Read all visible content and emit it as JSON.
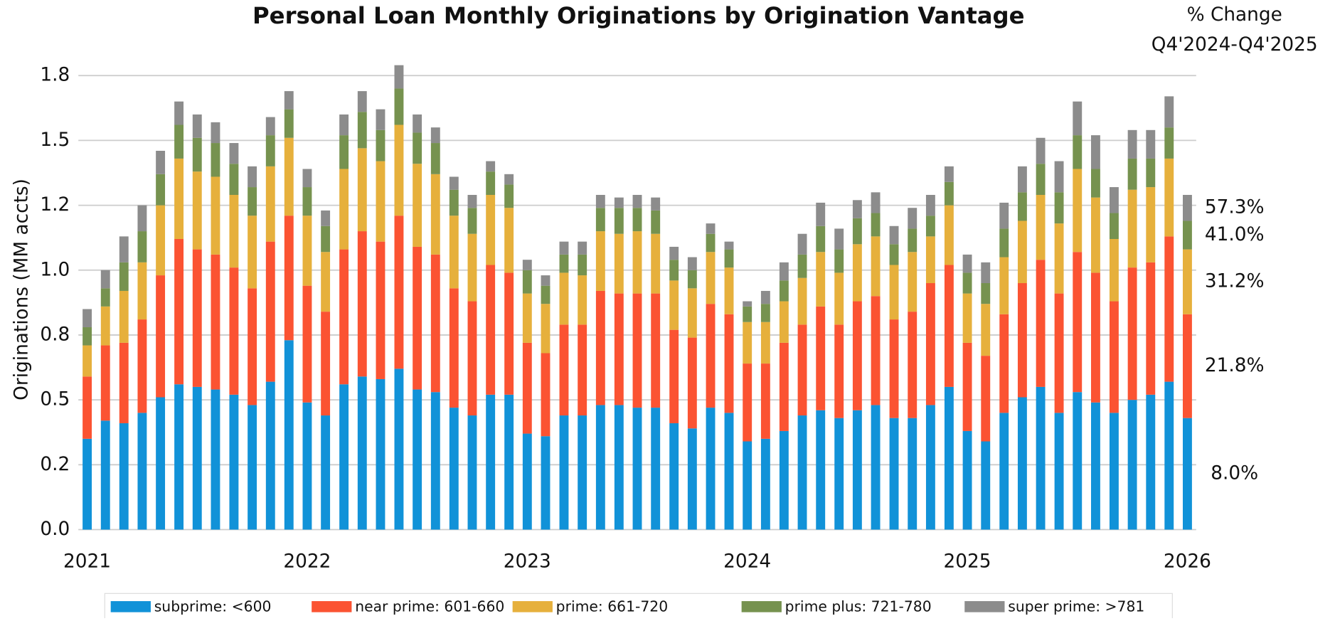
{
  "chart_data": {
    "type": "stacked_bar",
    "title": "Personal Loan Monthly Originations by Origination Vantage",
    "y_label": "Originations (MM accts)",
    "change_title": [
      "% Change",
      "Q4'2024-Q4'2025"
    ],
    "change_labels": [
      "8.0%",
      "21.8%",
      "31.2%",
      "41.0%",
      "57.3%"
    ],
    "x": [
      2021,
      2021.083,
      2021.167,
      2021.25,
      2021.333,
      2021.417,
      2021.5,
      2021.583,
      2021.667,
      2021.75,
      2021.833,
      2021.917,
      2022,
      2022.083,
      2022.167,
      2022.25,
      2022.333,
      2022.417,
      2022.5,
      2022.583,
      2022.667,
      2022.75,
      2022.833,
      2022.917,
      2023,
      2023.083,
      2023.167,
      2023.25,
      2023.333,
      2023.417,
      2023.5,
      2023.583,
      2023.667,
      2023.75,
      2023.833,
      2023.917,
      2024,
      2024.083,
      2024.167,
      2024.25,
      2024.333,
      2024.417,
      2024.5,
      2024.583,
      2024.667,
      2024.75,
      2024.833,
      2024.917,
      2025,
      2025.083,
      2025.167,
      2025.25,
      2025.333,
      2025.417,
      2025.5,
      2025.583,
      2025.667,
      2025.75,
      2025.833,
      2025.917,
      2026
    ],
    "xlim": [
      2020.96,
      2026.04
    ],
    "xticks": [
      2021,
      2022,
      2023,
      2024,
      2025,
      2026
    ],
    "ylim": [
      0,
      1.8
    ],
    "yticks": [
      {
        "value": 0,
        "label": "0.0"
      },
      {
        "value": 0.25,
        "label": "0.2"
      },
      0.5,
      {
        "value": 0.75,
        "label": "0.8"
      },
      {
        "value": 1,
        "label": "1.0"
      },
      {
        "value": 1.25,
        "label": "1.2"
      },
      1.5,
      {
        "value": 1.75,
        "label": "1.8"
      }
    ],
    "grid": true,
    "legend": "bottom",
    "series": [
      {
        "name": "subprime: <600",
        "color": "#1192d8",
        "values": [
          0.35,
          0.42,
          0.41,
          0.45,
          0.51,
          0.56,
          0.55,
          0.54,
          0.52,
          0.48,
          0.57,
          0.73,
          0.49,
          0.44,
          0.56,
          0.59,
          0.58,
          0.62,
          0.54,
          0.53,
          0.47,
          0.44,
          0.52,
          0.52,
          0.37,
          0.36,
          0.44,
          0.44,
          0.48,
          0.48,
          0.47,
          0.47,
          0.41,
          0.39,
          0.47,
          0.45,
          0.34,
          0.35,
          0.38,
          0.44,
          0.46,
          0.43,
          0.46,
          0.48,
          0.43,
          0.43,
          0.48,
          0.55,
          0.38,
          0.34,
          0.45,
          0.51,
          0.55,
          0.45,
          0.53,
          0.49,
          0.45,
          0.5,
          0.52,
          0.57,
          0.43
        ]
      },
      {
        "name": "near prime: 601-660",
        "color": "#fb5332",
        "values": [
          0.24,
          0.29,
          0.31,
          0.36,
          0.47,
          0.56,
          0.53,
          0.52,
          0.49,
          0.45,
          0.54,
          0.48,
          0.45,
          0.4,
          0.52,
          0.56,
          0.53,
          0.59,
          0.55,
          0.53,
          0.46,
          0.44,
          0.5,
          0.47,
          0.35,
          0.32,
          0.35,
          0.35,
          0.44,
          0.43,
          0.44,
          0.44,
          0.36,
          0.35,
          0.4,
          0.38,
          0.3,
          0.29,
          0.34,
          0.35,
          0.4,
          0.36,
          0.42,
          0.42,
          0.38,
          0.41,
          0.47,
          0.47,
          0.34,
          0.33,
          0.38,
          0.44,
          0.49,
          0.46,
          0.54,
          0.5,
          0.43,
          0.51,
          0.51,
          0.56,
          0.4
        ]
      },
      {
        "name": "prime: 661-720",
        "color": "#e6b03c",
        "values": [
          0.12,
          0.15,
          0.2,
          0.22,
          0.27,
          0.31,
          0.3,
          0.3,
          0.28,
          0.28,
          0.29,
          0.3,
          0.27,
          0.23,
          0.31,
          0.32,
          0.31,
          0.35,
          0.32,
          0.31,
          0.28,
          0.26,
          0.27,
          0.25,
          0.19,
          0.19,
          0.2,
          0.19,
          0.23,
          0.23,
          0.24,
          0.23,
          0.19,
          0.19,
          0.2,
          0.18,
          0.16,
          0.16,
          0.16,
          0.18,
          0.21,
          0.2,
          0.22,
          0.23,
          0.21,
          0.23,
          0.18,
          0.23,
          0.19,
          0.2,
          0.22,
          0.24,
          0.25,
          0.27,
          0.32,
          0.29,
          0.24,
          0.3,
          0.29,
          0.3,
          0.25
        ]
      },
      {
        "name": "prime plus: 721-780",
        "color": "#76924f",
        "values": [
          0.07,
          0.07,
          0.11,
          0.12,
          0.12,
          0.13,
          0.13,
          0.13,
          0.12,
          0.11,
          0.12,
          0.11,
          0.11,
          0.1,
          0.13,
          0.14,
          0.12,
          0.14,
          0.12,
          0.12,
          0.1,
          0.1,
          0.09,
          0.09,
          0.09,
          0.07,
          0.07,
          0.08,
          0.09,
          0.1,
          0.09,
          0.09,
          0.08,
          0.07,
          0.07,
          0.07,
          0.06,
          0.07,
          0.08,
          0.09,
          0.1,
          0.09,
          0.1,
          0.09,
          0.08,
          0.09,
          0.08,
          0.09,
          0.08,
          0.08,
          0.11,
          0.11,
          0.12,
          0.12,
          0.13,
          0.11,
          0.1,
          0.12,
          0.11,
          0.12,
          0.11
        ]
      },
      {
        "name": "super prime: >781",
        "color": "#8c8c8c",
        "values": [
          0.07,
          0.07,
          0.1,
          0.1,
          0.09,
          0.09,
          0.09,
          0.08,
          0.08,
          0.08,
          0.07,
          0.07,
          0.07,
          0.06,
          0.08,
          0.08,
          0.08,
          0.09,
          0.07,
          0.06,
          0.05,
          0.05,
          0.04,
          0.04,
          0.04,
          0.04,
          0.05,
          0.05,
          0.05,
          0.04,
          0.05,
          0.05,
          0.05,
          0.05,
          0.04,
          0.03,
          0.02,
          0.05,
          0.07,
          0.08,
          0.09,
          0.08,
          0.07,
          0.08,
          0.07,
          0.08,
          0.08,
          0.06,
          0.07,
          0.08,
          0.1,
          0.1,
          0.1,
          0.12,
          0.13,
          0.13,
          0.1,
          0.11,
          0.11,
          0.12,
          0.1
        ]
      }
    ]
  }
}
